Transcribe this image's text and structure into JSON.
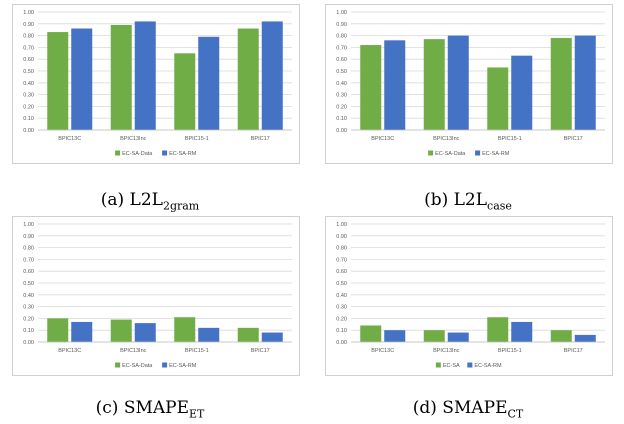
{
  "colors": {
    "green": "#70ad47",
    "blue": "#4472c4",
    "grid": "#d9d9d9",
    "axis_text": "#595959",
    "frame": "#d0d0d0"
  },
  "captions": [
    {
      "letter": "(a)",
      "main": "L2L",
      "sub": "2gram"
    },
    {
      "letter": "(b)",
      "main": "L2L",
      "sub": "case"
    },
    {
      "letter": "(c)",
      "main": "SMAPE",
      "sub": "ET"
    },
    {
      "letter": "(d)",
      "main": "SMAPE",
      "sub": "CT"
    }
  ],
  "chart_data": [
    {
      "type": "bar",
      "categories": [
        "BPIC13C",
        "BPIC13Inc",
        "BPIC15-1",
        "BPIC17"
      ],
      "series": [
        {
          "name": "EC-SA-Data",
          "values": [
            0.83,
            0.89,
            0.65,
            0.86
          ]
        },
        {
          "name": "EC-SA-RM",
          "values": [
            0.86,
            0.92,
            0.79,
            0.92
          ]
        }
      ],
      "ylim": [
        0,
        1
      ],
      "yticks": [
        "0.00",
        "0.10",
        "0.20",
        "0.30",
        "0.40",
        "0.50",
        "0.60",
        "0.70",
        "0.80",
        "0.90",
        "1.00"
      ],
      "grid": true,
      "legend": "bottom"
    },
    {
      "type": "bar",
      "categories": [
        "BPIC13C",
        "BPIC13Inc",
        "BPIC15-1",
        "BPIC17"
      ],
      "series": [
        {
          "name": "EC-SA-Data",
          "values": [
            0.72,
            0.77,
            0.53,
            0.78
          ]
        },
        {
          "name": "EC-SA-RM",
          "values": [
            0.76,
            0.8,
            0.63,
            0.8
          ]
        }
      ],
      "ylim": [
        0,
        1
      ],
      "yticks": [
        "0.00",
        "0.10",
        "0.20",
        "0.30",
        "0.40",
        "0.50",
        "0.60",
        "0.70",
        "0.80",
        "0.90",
        "1.00"
      ],
      "grid": true,
      "legend": "bottom"
    },
    {
      "type": "bar",
      "categories": [
        "BPIC13C",
        "BPIC13Inc",
        "BPIC15-1",
        "BPIC17"
      ],
      "series": [
        {
          "name": "EC-SA-Data",
          "values": [
            0.2,
            0.19,
            0.21,
            0.12
          ]
        },
        {
          "name": "EC-SA-RM",
          "values": [
            0.17,
            0.16,
            0.12,
            0.08
          ]
        }
      ],
      "ylim": [
        0,
        1
      ],
      "yticks": [
        "0.00",
        "0.10",
        "0.20",
        "0.30",
        "0.40",
        "0.50",
        "0.60",
        "0.70",
        "0.80",
        "0.90",
        "1.00"
      ],
      "grid": true,
      "legend": "bottom"
    },
    {
      "type": "bar",
      "categories": [
        "BPIC13C",
        "BPIC13Inc",
        "BPIC15-1",
        "BPIC17"
      ],
      "series": [
        {
          "name": "EC-SA",
          "values": [
            0.14,
            0.1,
            0.21,
            0.1
          ]
        },
        {
          "name": "EC-SA-RM",
          "values": [
            0.1,
            0.08,
            0.17,
            0.06
          ]
        }
      ],
      "ylim": [
        0,
        1
      ],
      "yticks": [
        "0.00",
        "0.10",
        "0.20",
        "0.30",
        "0.40",
        "0.50",
        "0.60",
        "0.70",
        "0.80",
        "0.90",
        "1.00"
      ],
      "grid": true,
      "legend": "bottom"
    }
  ]
}
